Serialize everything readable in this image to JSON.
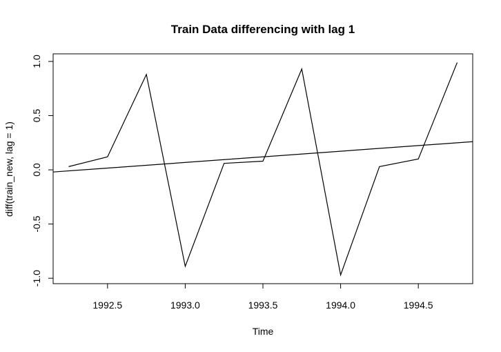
{
  "chart_data": {
    "type": "line",
    "title": "Train Data differencing with lag 1",
    "xlabel": "Time",
    "ylabel": "diff(train_new, lag = 1)",
    "xlim": [
      1992.15,
      1994.85
    ],
    "ylim": [
      -1.05,
      1.07
    ],
    "x_ticks": [
      1992.5,
      1993.0,
      1993.5,
      1994.0,
      1994.5
    ],
    "x_tick_labels": [
      "1992.5",
      "1993.0",
      "1993.5",
      "1994.0",
      "1994.5"
    ],
    "y_ticks": [
      -1.0,
      -0.5,
      0.0,
      0.5,
      1.0
    ],
    "y_tick_labels": [
      "-1.0",
      "-0.5",
      "0.0",
      "0.5",
      "1.0"
    ],
    "grid": false,
    "series": [
      {
        "x": [
          1992.25,
          1992.5,
          1992.75,
          1993.0,
          1993.25,
          1993.5,
          1993.75,
          1994.0,
          1994.25,
          1994.5,
          1994.75
        ],
        "y": [
          0.03,
          0.12,
          0.88,
          -0.89,
          0.06,
          0.08,
          0.93,
          -0.97,
          0.03,
          0.1,
          0.99
        ]
      }
    ],
    "trend_line": {
      "x": [
        1992.15,
        1994.85
      ],
      "y": [
        -0.02,
        0.26
      ]
    },
    "colors": {
      "line": "#000000",
      "background": "#ffffff"
    }
  }
}
